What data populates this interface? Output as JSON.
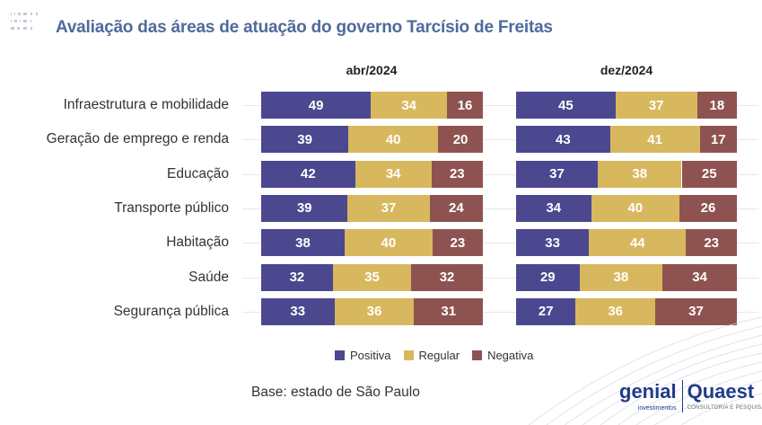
{
  "title": "Avaliação das áreas de atuação do governo Tarcísio de Freitas",
  "base_note": "Base: estado de São Paulo",
  "logos": {
    "genial": "genial",
    "genial_sub": "investimentos",
    "quaest": "Quaest",
    "quaest_sub": "CONSULTORIA E PESQUISA"
  },
  "colors": {
    "Positiva": "#4b4890",
    "Regular": "#d8b85e",
    "Negativa": "#8e5350"
  },
  "chart_data": [
    {
      "type": "bar",
      "stacked": true,
      "orientation": "horizontal",
      "title": "abr/2024",
      "categories": [
        "Infraestrutura e mobilidade",
        "Geração de emprego e renda",
        "Educação",
        "Transporte público",
        "Habitação",
        "Saúde",
        "Segurança pública"
      ],
      "series": [
        {
          "name": "Positiva",
          "values": [
            49,
            39,
            42,
            39,
            38,
            32,
            33
          ]
        },
        {
          "name": "Regular",
          "values": [
            34,
            40,
            34,
            37,
            40,
            35,
            36
          ]
        },
        {
          "name": "Negativa",
          "values": [
            16,
            20,
            23,
            24,
            23,
            32,
            31
          ]
        }
      ],
      "legend": "bottom"
    },
    {
      "type": "bar",
      "stacked": true,
      "orientation": "horizontal",
      "title": "dez/2024",
      "categories": [
        "Infraestrutura e mobilidade",
        "Geração de emprego e renda",
        "Educação",
        "Transporte público",
        "Habitação",
        "Saúde",
        "Segurança pública"
      ],
      "series": [
        {
          "name": "Positiva",
          "values": [
            45,
            43,
            37,
            34,
            33,
            29,
            27
          ]
        },
        {
          "name": "Regular",
          "values": [
            37,
            41,
            38,
            40,
            44,
            38,
            36
          ]
        },
        {
          "name": "Negativa",
          "values": [
            18,
            17,
            25,
            26,
            23,
            34,
            37
          ]
        }
      ],
      "legend": "bottom"
    }
  ]
}
